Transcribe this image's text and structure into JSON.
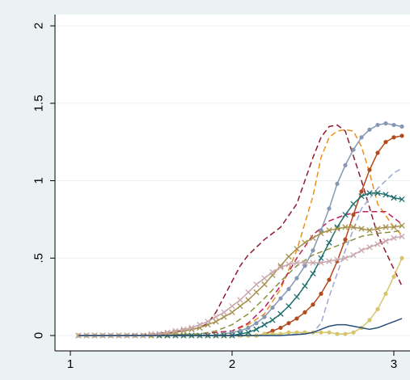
{
  "chart_data": {
    "type": "line",
    "title": "",
    "xlabel": "",
    "ylabel": "",
    "xlim": [
      1,
      3.05
    ],
    "ylim": [
      0,
      2
    ],
    "x_ticks": [
      {
        "value": 1,
        "label": "1"
      },
      {
        "value": 2,
        "label": "2"
      },
      {
        "value": 3,
        "label": "3"
      }
    ],
    "y_ticks": [
      {
        "value": 0,
        "label": "0"
      },
      {
        "value": 0.5,
        "label": ".5"
      },
      {
        "value": 1,
        "label": "1"
      },
      {
        "value": 1.5,
        "label": "1.5"
      },
      {
        "value": 2,
        "label": "2"
      }
    ],
    "grid": "horizontal",
    "series": [
      {
        "color": "#8e1a2d",
        "style": "dash",
        "marker": "none",
        "x": [
          1.05,
          1.3,
          1.5,
          1.6,
          1.7,
          1.8,
          1.85,
          1.9,
          1.95,
          2.0,
          2.05,
          2.1,
          2.2,
          2.3,
          2.4,
          2.5,
          2.55,
          2.6,
          2.65,
          2.7,
          2.8,
          2.9,
          3.05
        ],
        "y": [
          0,
          0,
          0.01,
          0.02,
          0.03,
          0.05,
          0.08,
          0.15,
          0.25,
          0.35,
          0.45,
          0.52,
          0.62,
          0.7,
          0.85,
          1.15,
          1.28,
          1.35,
          1.36,
          1.32,
          1.0,
          0.65,
          0.32
        ]
      },
      {
        "color": "#e8911c",
        "style": "dash",
        "marker": "none",
        "x": [
          1.05,
          1.5,
          1.8,
          2.0,
          2.1,
          2.2,
          2.3,
          2.4,
          2.5,
          2.55,
          2.6,
          2.65,
          2.7,
          2.75,
          2.8,
          2.85,
          2.9,
          3.0,
          3.05
        ],
        "y": [
          0,
          0,
          0.01,
          0.03,
          0.07,
          0.14,
          0.3,
          0.55,
          0.9,
          1.15,
          1.28,
          1.32,
          1.33,
          1.32,
          1.22,
          1.05,
          0.85,
          0.7,
          0.65
        ]
      },
      {
        "color": "#b8225a",
        "style": "dash",
        "marker": "none",
        "x": [
          1.05,
          1.5,
          1.8,
          2.0,
          2.1,
          2.2,
          2.3,
          2.4,
          2.5,
          2.6,
          2.7,
          2.8,
          2.9,
          2.95,
          3.0,
          3.05
        ],
        "y": [
          0,
          0,
          0.01,
          0.03,
          0.08,
          0.18,
          0.32,
          0.5,
          0.65,
          0.74,
          0.78,
          0.8,
          0.8,
          0.8,
          0.76,
          0.72
        ]
      },
      {
        "color": "#9ba7d6",
        "style": "dash",
        "marker": "none",
        "x": [
          1.05,
          1.5,
          2.0,
          2.3,
          2.5,
          2.55,
          2.6,
          2.7,
          2.8,
          2.9,
          3.0,
          3.05
        ],
        "y": [
          0,
          0,
          0,
          0,
          0.02,
          0.08,
          0.25,
          0.55,
          0.82,
          0.95,
          1.05,
          1.08
        ]
      },
      {
        "color": "#8a8f3c",
        "style": "dash",
        "marker": "none",
        "x": [
          1.05,
          1.5,
          1.8,
          1.9,
          2.0,
          2.1,
          2.2,
          2.3,
          2.4,
          2.5,
          2.6,
          2.7,
          2.8,
          2.9,
          3.0,
          3.05
        ],
        "y": [
          0,
          0,
          0.01,
          0.03,
          0.07,
          0.14,
          0.24,
          0.35,
          0.45,
          0.52,
          0.56,
          0.6,
          0.64,
          0.66,
          0.67,
          0.68
        ]
      },
      {
        "color": "#8598b3",
        "style": "solid",
        "marker": "dot",
        "x": [
          1.05,
          1.1,
          1.15,
          1.2,
          1.25,
          1.3,
          1.35,
          1.4,
          1.45,
          1.5,
          1.55,
          1.6,
          1.65,
          1.7,
          1.75,
          1.8,
          1.85,
          1.9,
          1.95,
          2.0,
          2.05,
          2.1,
          2.15,
          2.2,
          2.25,
          2.3,
          2.35,
          2.4,
          2.45,
          2.5,
          2.55,
          2.6,
          2.65,
          2.7,
          2.75,
          2.8,
          2.85,
          2.9,
          2.95,
          3.0,
          3.05
        ],
        "y": [
          0,
          0,
          0,
          0,
          0,
          0,
          0,
          0,
          0,
          0,
          0,
          0,
          0,
          0,
          0,
          0,
          0,
          0,
          0.01,
          0.02,
          0.03,
          0.05,
          0.08,
          0.12,
          0.18,
          0.24,
          0.3,
          0.37,
          0.45,
          0.55,
          0.68,
          0.82,
          0.98,
          1.1,
          1.2,
          1.28,
          1.33,
          1.36,
          1.37,
          1.36,
          1.35
        ]
      },
      {
        "color": "#b24a1e",
        "style": "solid",
        "marker": "dot",
        "x": [
          1.05,
          1.1,
          1.15,
          1.2,
          1.25,
          1.3,
          1.35,
          1.4,
          1.45,
          1.5,
          1.55,
          1.6,
          1.65,
          1.7,
          1.75,
          1.8,
          1.85,
          1.9,
          1.95,
          2.0,
          2.05,
          2.1,
          2.15,
          2.2,
          2.25,
          2.3,
          2.35,
          2.4,
          2.45,
          2.5,
          2.55,
          2.6,
          2.65,
          2.7,
          2.75,
          2.8,
          2.85,
          2.9,
          2.95,
          3.0,
          3.05
        ],
        "y": [
          0,
          0,
          0,
          0,
          0,
          0,
          0,
          0,
          0,
          0,
          0,
          0,
          0,
          0,
          0,
          0,
          0,
          0,
          0,
          0,
          0,
          0,
          0,
          0.01,
          0.03,
          0.05,
          0.08,
          0.11,
          0.15,
          0.2,
          0.27,
          0.36,
          0.48,
          0.62,
          0.78,
          0.93,
          1.07,
          1.18,
          1.25,
          1.28,
          1.29
        ]
      },
      {
        "color": "#d6c56b",
        "style": "solid",
        "marker": "dot",
        "x": [
          1.05,
          1.1,
          1.15,
          1.2,
          1.25,
          1.3,
          1.35,
          1.4,
          1.45,
          1.5,
          1.55,
          1.6,
          1.65,
          1.7,
          1.75,
          1.8,
          1.85,
          1.9,
          1.95,
          2.0,
          2.05,
          2.1,
          2.15,
          2.2,
          2.25,
          2.3,
          2.35,
          2.4,
          2.45,
          2.5,
          2.55,
          2.6,
          2.65,
          2.7,
          2.75,
          2.8,
          2.85,
          2.9,
          2.95,
          3.0,
          3.05
        ],
        "y": [
          0,
          0,
          0,
          0,
          0,
          0,
          0,
          0,
          0,
          0,
          0,
          0,
          0,
          0,
          0,
          0,
          0,
          0,
          0,
          0,
          0,
          0,
          0,
          0.01,
          0.01,
          0.01,
          0.02,
          0.02,
          0.02,
          0.02,
          0.02,
          0.02,
          0.01,
          0.01,
          0.02,
          0.05,
          0.1,
          0.17,
          0.27,
          0.38,
          0.5
        ]
      },
      {
        "color": "#1f6f6f",
        "style": "solid",
        "marker": "x",
        "x": [
          1.05,
          1.1,
          1.15,
          1.2,
          1.25,
          1.3,
          1.35,
          1.4,
          1.45,
          1.5,
          1.55,
          1.6,
          1.65,
          1.7,
          1.75,
          1.8,
          1.85,
          1.9,
          1.95,
          2.0,
          2.05,
          2.1,
          2.15,
          2.2,
          2.25,
          2.3,
          2.35,
          2.4,
          2.45,
          2.5,
          2.55,
          2.6,
          2.65,
          2.7,
          2.75,
          2.8,
          2.85,
          2.9,
          2.95,
          3.0,
          3.05
        ],
        "y": [
          0,
          0,
          0,
          0,
          0,
          0,
          0,
          0,
          0,
          0,
          0,
          0,
          0,
          0,
          0,
          0,
          0,
          0,
          0,
          0,
          0.01,
          0.02,
          0.04,
          0.07,
          0.1,
          0.14,
          0.19,
          0.25,
          0.32,
          0.4,
          0.5,
          0.6,
          0.7,
          0.78,
          0.85,
          0.9,
          0.92,
          0.92,
          0.91,
          0.89,
          0.88
        ]
      },
      {
        "color": "#a5914a",
        "style": "solid",
        "marker": "x",
        "x": [
          1.05,
          1.1,
          1.15,
          1.2,
          1.25,
          1.3,
          1.35,
          1.4,
          1.45,
          1.5,
          1.55,
          1.6,
          1.65,
          1.7,
          1.75,
          1.8,
          1.85,
          1.9,
          1.95,
          2.0,
          2.05,
          2.1,
          2.15,
          2.2,
          2.25,
          2.3,
          2.35,
          2.4,
          2.45,
          2.5,
          2.55,
          2.6,
          2.65,
          2.7,
          2.75,
          2.8,
          2.85,
          2.9,
          2.95,
          3.0,
          3.05
        ],
        "y": [
          0,
          0,
          0,
          0,
          0,
          0,
          0,
          0,
          0,
          0,
          0.01,
          0.01,
          0.02,
          0.03,
          0.04,
          0.05,
          0.07,
          0.09,
          0.12,
          0.15,
          0.19,
          0.23,
          0.28,
          0.33,
          0.39,
          0.45,
          0.51,
          0.56,
          0.6,
          0.63,
          0.66,
          0.68,
          0.69,
          0.7,
          0.7,
          0.69,
          0.68,
          0.69,
          0.7,
          0.7,
          0.71
        ]
      },
      {
        "color": "#c9a7ac",
        "style": "solid",
        "marker": "x",
        "x": [
          1.05,
          1.1,
          1.15,
          1.2,
          1.25,
          1.3,
          1.35,
          1.4,
          1.45,
          1.5,
          1.55,
          1.6,
          1.65,
          1.7,
          1.75,
          1.8,
          1.85,
          1.9,
          1.95,
          2.0,
          2.05,
          2.1,
          2.15,
          2.2,
          2.25,
          2.3,
          2.35,
          2.4,
          2.45,
          2.5,
          2.55,
          2.6,
          2.65,
          2.7,
          2.75,
          2.8,
          2.85,
          2.9,
          2.95,
          3.0,
          3.05
        ],
        "y": [
          0,
          0,
          0,
          0,
          0,
          0,
          0,
          0,
          0,
          0.01,
          0.01,
          0.02,
          0.03,
          0.04,
          0.05,
          0.07,
          0.09,
          0.12,
          0.15,
          0.19,
          0.23,
          0.28,
          0.33,
          0.37,
          0.41,
          0.44,
          0.46,
          0.47,
          0.47,
          0.47,
          0.47,
          0.48,
          0.49,
          0.5,
          0.52,
          0.55,
          0.57,
          0.59,
          0.61,
          0.63,
          0.64
        ]
      },
      {
        "color": "#284f7a",
        "style": "solid",
        "marker": "none",
        "x": [
          1.05,
          1.5,
          2.0,
          2.3,
          2.45,
          2.5,
          2.55,
          2.6,
          2.65,
          2.7,
          2.75,
          2.8,
          2.85,
          2.9,
          2.95,
          3.0,
          3.05
        ],
        "y": [
          0,
          0,
          0,
          0,
          0.01,
          0.02,
          0.04,
          0.06,
          0.07,
          0.07,
          0.06,
          0.05,
          0.04,
          0.05,
          0.07,
          0.09,
          0.11
        ]
      }
    ]
  }
}
